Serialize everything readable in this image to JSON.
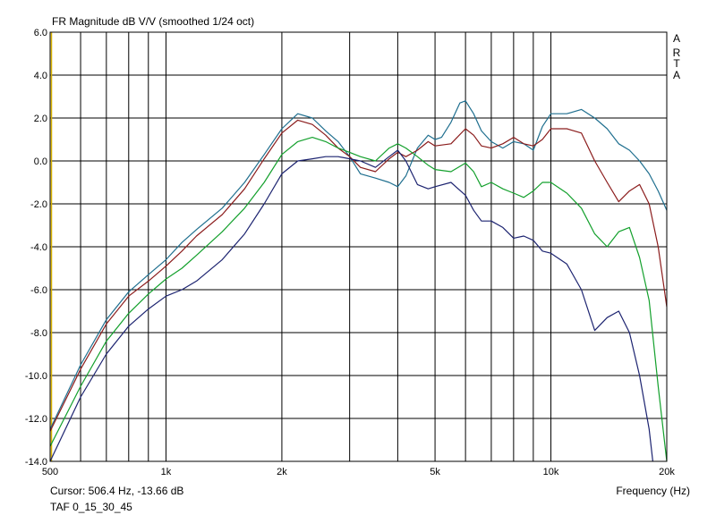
{
  "header": {
    "title": "FR Magnitude dB V/V (smoothed 1/24 oct)"
  },
  "brand": {
    "letters": [
      "A",
      "R",
      "T",
      "A"
    ]
  },
  "status": {
    "cursor": "Cursor: 506.4 Hz, -13.66 dB",
    "file": "TAF 0_15_30_45"
  },
  "chart_data": {
    "type": "line",
    "title": "FR Magnitude dB V/V (smoothed 1/24 oct)",
    "xlabel": "Frequency (Hz)",
    "ylabel": "",
    "xscale": "log",
    "xlim": [
      500,
      20000
    ],
    "ylim": [
      -14,
      6
    ],
    "grid": true,
    "legend": "none",
    "x_ticks": [
      {
        "value": 500,
        "label": "500"
      },
      {
        "value": 1000,
        "label": "1k"
      },
      {
        "value": 2000,
        "label": "2k"
      },
      {
        "value": 5000,
        "label": "5k"
      },
      {
        "value": 10000,
        "label": "10k"
      },
      {
        "value": 20000,
        "label": "20k"
      }
    ],
    "x_minor": [
      600,
      700,
      800,
      900,
      3000,
      4000,
      6000,
      7000,
      8000,
      9000
    ],
    "y_ticks": [
      {
        "value": 6,
        "label": "6.0"
      },
      {
        "value": 4,
        "label": "4.0"
      },
      {
        "value": 2,
        "label": "2.0"
      },
      {
        "value": 0,
        "label": "0.0"
      },
      {
        "value": -2,
        "label": "-2.0"
      },
      {
        "value": -4,
        "label": "-4.0"
      },
      {
        "value": -6,
        "label": "-6.0"
      },
      {
        "value": -8,
        "label": "-8.0"
      },
      {
        "value": -10,
        "label": "-10.0"
      },
      {
        "value": -12,
        "label": "-12.0"
      },
      {
        "value": -14,
        "label": "-14.0"
      }
    ],
    "series": [
      {
        "color": "#1f6f8f",
        "points": [
          [
            500,
            -12.5
          ],
          [
            600,
            -9.5
          ],
          [
            700,
            -7.4
          ],
          [
            800,
            -6.1
          ],
          [
            900,
            -5.3
          ],
          [
            1000,
            -4.6
          ],
          [
            1100,
            -3.8
          ],
          [
            1200,
            -3.2
          ],
          [
            1400,
            -2.2
          ],
          [
            1600,
            -1.0
          ],
          [
            1800,
            0.3
          ],
          [
            2000,
            1.5
          ],
          [
            2200,
            2.2
          ],
          [
            2400,
            2.0
          ],
          [
            2600,
            1.4
          ],
          [
            2800,
            0.9
          ],
          [
            3000,
            0.2
          ],
          [
            3200,
            -0.6
          ],
          [
            3500,
            -0.8
          ],
          [
            3800,
            -1.0
          ],
          [
            4000,
            -1.2
          ],
          [
            4200,
            -0.7
          ],
          [
            4500,
            0.6
          ],
          [
            4800,
            1.2
          ],
          [
            5000,
            1.0
          ],
          [
            5200,
            1.1
          ],
          [
            5500,
            1.8
          ],
          [
            5800,
            2.7
          ],
          [
            6000,
            2.8
          ],
          [
            6300,
            2.2
          ],
          [
            6600,
            1.4
          ],
          [
            7000,
            0.9
          ],
          [
            7500,
            0.6
          ],
          [
            8000,
            0.9
          ],
          [
            8500,
            0.8
          ],
          [
            9000,
            0.5
          ],
          [
            9500,
            1.6
          ],
          [
            10000,
            2.2
          ],
          [
            11000,
            2.2
          ],
          [
            12000,
            2.4
          ],
          [
            13000,
            2.0
          ],
          [
            14000,
            1.5
          ],
          [
            15000,
            0.8
          ],
          [
            16000,
            0.5
          ],
          [
            17000,
            0.0
          ],
          [
            18000,
            -0.6
          ],
          [
            19000,
            -1.4
          ],
          [
            20000,
            -2.3
          ]
        ]
      },
      {
        "color": "#8b1c1c",
        "points": [
          [
            500,
            -12.6
          ],
          [
            600,
            -9.7
          ],
          [
            700,
            -7.6
          ],
          [
            800,
            -6.3
          ],
          [
            900,
            -5.6
          ],
          [
            1000,
            -4.9
          ],
          [
            1100,
            -4.2
          ],
          [
            1200,
            -3.5
          ],
          [
            1400,
            -2.5
          ],
          [
            1600,
            -1.3
          ],
          [
            1800,
            0.1
          ],
          [
            2000,
            1.3
          ],
          [
            2200,
            1.9
          ],
          [
            2400,
            1.7
          ],
          [
            2600,
            1.2
          ],
          [
            2800,
            0.6
          ],
          [
            3000,
            0.2
          ],
          [
            3200,
            -0.3
          ],
          [
            3500,
            -0.5
          ],
          [
            3800,
            0.1
          ],
          [
            4000,
            0.4
          ],
          [
            4200,
            0.2
          ],
          [
            4500,
            0.5
          ],
          [
            4800,
            0.9
          ],
          [
            5000,
            0.7
          ],
          [
            5500,
            0.8
          ],
          [
            6000,
            1.5
          ],
          [
            6300,
            1.2
          ],
          [
            6600,
            0.7
          ],
          [
            7000,
            0.6
          ],
          [
            7500,
            0.8
          ],
          [
            8000,
            1.1
          ],
          [
            8500,
            0.8
          ],
          [
            9000,
            0.7
          ],
          [
            9500,
            1.0
          ],
          [
            10000,
            1.5
          ],
          [
            11000,
            1.5
          ],
          [
            12000,
            1.3
          ],
          [
            13000,
            0.0
          ],
          [
            14000,
            -1.0
          ],
          [
            15000,
            -1.9
          ],
          [
            16000,
            -1.4
          ],
          [
            17000,
            -1.1
          ],
          [
            18000,
            -2.0
          ],
          [
            19000,
            -4.0
          ],
          [
            20000,
            -6.8
          ]
        ]
      },
      {
        "color": "#13a02c",
        "points": [
          [
            500,
            -13.3
          ],
          [
            600,
            -10.5
          ],
          [
            700,
            -8.4
          ],
          [
            800,
            -7.1
          ],
          [
            900,
            -6.2
          ],
          [
            1000,
            -5.5
          ],
          [
            1100,
            -5.0
          ],
          [
            1200,
            -4.4
          ],
          [
            1400,
            -3.3
          ],
          [
            1600,
            -2.2
          ],
          [
            1800,
            -1.0
          ],
          [
            2000,
            0.3
          ],
          [
            2200,
            0.9
          ],
          [
            2400,
            1.1
          ],
          [
            2600,
            0.9
          ],
          [
            2800,
            0.6
          ],
          [
            3000,
            0.4
          ],
          [
            3200,
            0.2
          ],
          [
            3500,
            0.0
          ],
          [
            3800,
            0.6
          ],
          [
            4000,
            0.8
          ],
          [
            4200,
            0.6
          ],
          [
            4500,
            0.2
          ],
          [
            4800,
            -0.2
          ],
          [
            5000,
            -0.4
          ],
          [
            5500,
            -0.5
          ],
          [
            6000,
            -0.1
          ],
          [
            6300,
            -0.5
          ],
          [
            6600,
            -1.2
          ],
          [
            7000,
            -1.0
          ],
          [
            7500,
            -1.3
          ],
          [
            8000,
            -1.5
          ],
          [
            8500,
            -1.7
          ],
          [
            9000,
            -1.4
          ],
          [
            9500,
            -1.0
          ],
          [
            10000,
            -1.0
          ],
          [
            11000,
            -1.5
          ],
          [
            12000,
            -2.2
          ],
          [
            13000,
            -3.4
          ],
          [
            14000,
            -4.0
          ],
          [
            15000,
            -3.3
          ],
          [
            16000,
            -3.1
          ],
          [
            17000,
            -4.5
          ],
          [
            18000,
            -6.5
          ],
          [
            19000,
            -10.5
          ],
          [
            20000,
            -14.0
          ]
        ]
      },
      {
        "color": "#1c2370",
        "points": [
          [
            500,
            -14.0
          ],
          [
            600,
            -11.0
          ],
          [
            700,
            -9.0
          ],
          [
            800,
            -7.7
          ],
          [
            900,
            -6.9
          ],
          [
            1000,
            -6.3
          ],
          [
            1100,
            -6.0
          ],
          [
            1200,
            -5.6
          ],
          [
            1400,
            -4.6
          ],
          [
            1600,
            -3.4
          ],
          [
            1800,
            -2.0
          ],
          [
            2000,
            -0.6
          ],
          [
            2200,
            0.0
          ],
          [
            2400,
            0.1
          ],
          [
            2600,
            0.2
          ],
          [
            2800,
            0.2
          ],
          [
            3000,
            0.1
          ],
          [
            3200,
            0.0
          ],
          [
            3500,
            -0.3
          ],
          [
            3800,
            0.2
          ],
          [
            4000,
            0.5
          ],
          [
            4200,
            0.0
          ],
          [
            4500,
            -1.1
          ],
          [
            4800,
            -1.3
          ],
          [
            5000,
            -1.2
          ],
          [
            5500,
            -1.0
          ],
          [
            6000,
            -1.6
          ],
          [
            6300,
            -2.3
          ],
          [
            6600,
            -2.8
          ],
          [
            7000,
            -2.8
          ],
          [
            7500,
            -3.1
          ],
          [
            8000,
            -3.6
          ],
          [
            8500,
            -3.5
          ],
          [
            9000,
            -3.7
          ],
          [
            9500,
            -4.2
          ],
          [
            10000,
            -4.3
          ],
          [
            11000,
            -4.8
          ],
          [
            12000,
            -6.0
          ],
          [
            13000,
            -7.9
          ],
          [
            14000,
            -7.3
          ],
          [
            15000,
            -7.0
          ],
          [
            16000,
            -8.0
          ],
          [
            17000,
            -10.0
          ],
          [
            18000,
            -12.5
          ],
          [
            18400,
            -14.0
          ]
        ]
      }
    ]
  }
}
